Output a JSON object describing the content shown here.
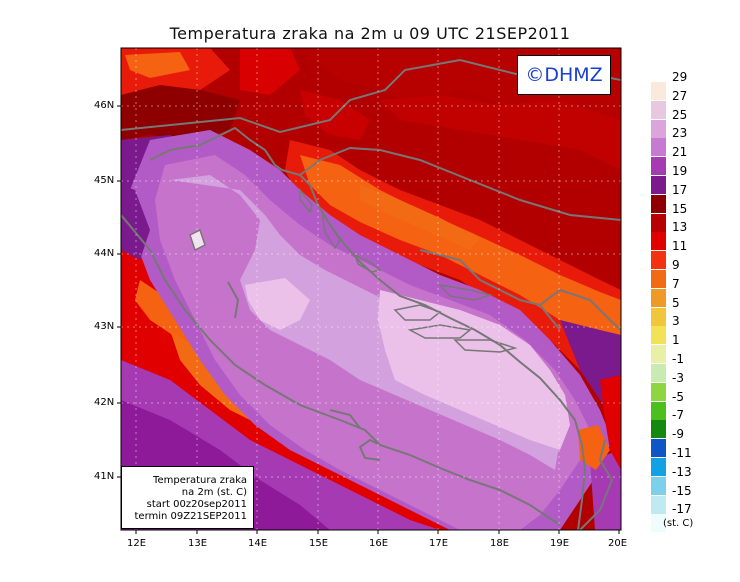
{
  "title": "Temperatura zraka na 2m u 09 UTC 21SEP2011",
  "watermark": "©DHMZ",
  "info": {
    "line1": "Temperatura zraka",
    "line2": "na 2m (st. C)",
    "line3": "start 00z20sep2011",
    "line4": "termin 09Z21SEP2011"
  },
  "latitude_labels": [
    "46N",
    "45N",
    "44N",
    "43N",
    "42N",
    "41N"
  ],
  "longitude_labels": [
    "12E",
    "13E",
    "14E",
    "15E",
    "16E",
    "17E",
    "18E",
    "19E",
    "20E"
  ],
  "colorbar": {
    "labels": [
      "29",
      "27",
      "25",
      "23",
      "21",
      "19",
      "17",
      "15",
      "13",
      "11",
      "9",
      "7",
      "5",
      "3",
      "1",
      "-1",
      "-3",
      "-5",
      "-7",
      "-9",
      "-11",
      "-13",
      "-15",
      "-17"
    ],
    "colors": [
      "#fbe9dc",
      "#e8c8e0",
      "#dba5db",
      "#c67ad0",
      "#a63ab3",
      "#7a1a8c",
      "#8e0000",
      "#b70000",
      "#e00000",
      "#f5320f",
      "#f36a14",
      "#ef9a26",
      "#f0c63a",
      "#f1e258",
      "#e8efa6",
      "#c9eab0",
      "#8fd542",
      "#4bbf1d",
      "#138a0f",
      "#0e56c6",
      "#12a1e4",
      "#7dd0ea",
      "#bfeaf2",
      "#eefcfd"
    ],
    "unit": "(st. C)"
  },
  "palette": {
    "red_dark": "#b20000",
    "red_mid": "#d80000",
    "red": "#e81a0a",
    "orange": "#f46212",
    "purple_dark": "#7a1a8c",
    "purple": "#a63ab3",
    "magenta": "#b25bc6",
    "lilac": "#d3a1dd",
    "pale": "#ecc1e9",
    "coast": "#777777"
  }
}
